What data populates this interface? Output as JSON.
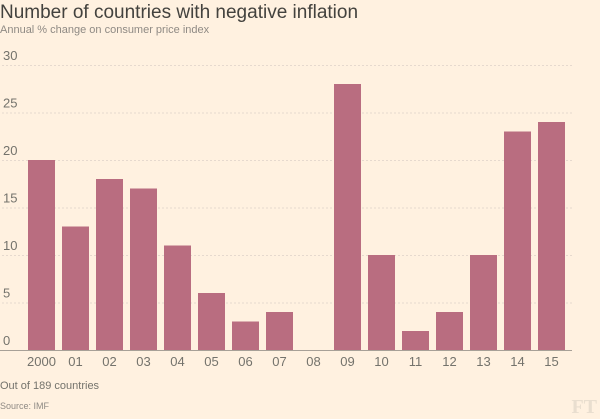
{
  "chart_data": {
    "type": "bar",
    "title": "Number of countries with negative inflation",
    "subtitle": "Annual % change on consumer price index",
    "xlabel": "",
    "ylabel": "",
    "categories": [
      "2000",
      "01",
      "02",
      "03",
      "04",
      "05",
      "06",
      "07",
      "08",
      "09",
      "10",
      "11",
      "12",
      "13",
      "14",
      "15"
    ],
    "values": [
      20,
      13,
      18,
      17,
      11,
      6,
      3,
      4,
      0,
      28,
      10,
      2,
      4,
      10,
      23,
      24
    ],
    "ylim": [
      0,
      30
    ],
    "yticks": [
      0,
      5,
      10,
      15,
      20,
      25,
      30
    ],
    "grid": true,
    "bar_color": "#b96d80",
    "note": "Out of 189 countries",
    "source": "Source: IMF",
    "logo": "FT"
  }
}
